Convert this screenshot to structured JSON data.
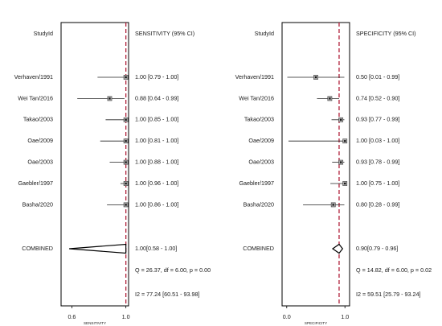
{
  "chart_data": [
    {
      "type": "forest",
      "study_header": "StudyId",
      "ci_header": "SENSITIVITY (95% CI)",
      "xlabel": "SENSITIVITY",
      "xticks": [
        "0.6",
        "1.0"
      ],
      "xlim": [
        0.52,
        1.02
      ],
      "reference_line": 1.0,
      "studies": [
        {
          "name": "Verhaven/1991",
          "estimate": 1.0,
          "lower": 0.79,
          "upper": 1.0,
          "ci_text": "1.00 [0.79 - 1.00]"
        },
        {
          "name": "Wei Tan/2016",
          "estimate": 0.88,
          "lower": 0.64,
          "upper": 0.99,
          "ci_text": "0.88 [0.64 - 0.99]"
        },
        {
          "name": "Takao/2003",
          "estimate": 1.0,
          "lower": 0.85,
          "upper": 1.0,
          "ci_text": "1.00 [0.85 - 1.00]"
        },
        {
          "name": "Oae/2009",
          "estimate": 1.0,
          "lower": 0.81,
          "upper": 1.0,
          "ci_text": "1.00 [0.81 - 1.00]"
        },
        {
          "name": "Oae/2003",
          "estimate": 1.0,
          "lower": 0.88,
          "upper": 1.0,
          "ci_text": "1.00 [0.88 - 1.00]"
        },
        {
          "name": "Gaebler/1997",
          "estimate": 1.0,
          "lower": 0.96,
          "upper": 1.0,
          "ci_text": "1.00 [0.96 - 1.00]"
        },
        {
          "name": "Basha/2020",
          "estimate": 1.0,
          "lower": 0.86,
          "upper": 1.0,
          "ci_text": "1.00 [0.86 - 1.00]"
        }
      ],
      "combined": {
        "name": "COMBINED",
        "estimate": 1.0,
        "lower": 0.58,
        "upper": 1.0,
        "ci_text": "1.00[0.58 - 1.00]"
      },
      "heterogeneity": [
        "Q = 26.37, df = 6.00, p =  0.00",
        "I2 = 77.24 [60.51 - 93.98]"
      ]
    },
    {
      "type": "forest",
      "study_header": "StudyId",
      "ci_header": "SPECIFICITY (95% CI)",
      "xlabel": "SPECIFICITY",
      "xticks": [
        "0.0",
        "1.0"
      ],
      "xlim": [
        -0.08,
        1.08
      ],
      "reference_line": 0.9,
      "studies": [
        {
          "name": "Verhaven/1991",
          "estimate": 0.5,
          "lower": 0.01,
          "upper": 0.99,
          "ci_text": "0.50 [0.01 - 0.99]"
        },
        {
          "name": "Wei Tan/2016",
          "estimate": 0.74,
          "lower": 0.52,
          "upper": 0.9,
          "ci_text": "0.74 [0.52 - 0.90]"
        },
        {
          "name": "Takao/2003",
          "estimate": 0.93,
          "lower": 0.77,
          "upper": 0.99,
          "ci_text": "0.93 [0.77 - 0.99]"
        },
        {
          "name": "Oae/2009",
          "estimate": 1.0,
          "lower": 0.03,
          "upper": 1.0,
          "ci_text": "1.00 [0.03 - 1.00]"
        },
        {
          "name": "Oae/2003",
          "estimate": 0.93,
          "lower": 0.78,
          "upper": 0.99,
          "ci_text": "0.93 [0.78 - 0.99]"
        },
        {
          "name": "Gaebler/1997",
          "estimate": 1.0,
          "lower": 0.75,
          "upper": 1.0,
          "ci_text": "1.00 [0.75 - 1.00]"
        },
        {
          "name": "Basha/2020",
          "estimate": 0.8,
          "lower": 0.28,
          "upper": 0.99,
          "ci_text": "0.80 [0.28 - 0.99]"
        }
      ],
      "combined": {
        "name": "COMBINED",
        "estimate": 0.9,
        "lower": 0.79,
        "upper": 0.96,
        "ci_text": "0.90[0.79 - 0.96]"
      },
      "heterogeneity": [
        "Q = 14.82, df = 6.00, p =  0.02",
        "I2 = 59.51 [25.79 - 93.24]"
      ]
    }
  ],
  "colors": {
    "reference": "#b0203a",
    "marker": "#555555",
    "line": "#222222",
    "hetero_text": "#333333"
  }
}
